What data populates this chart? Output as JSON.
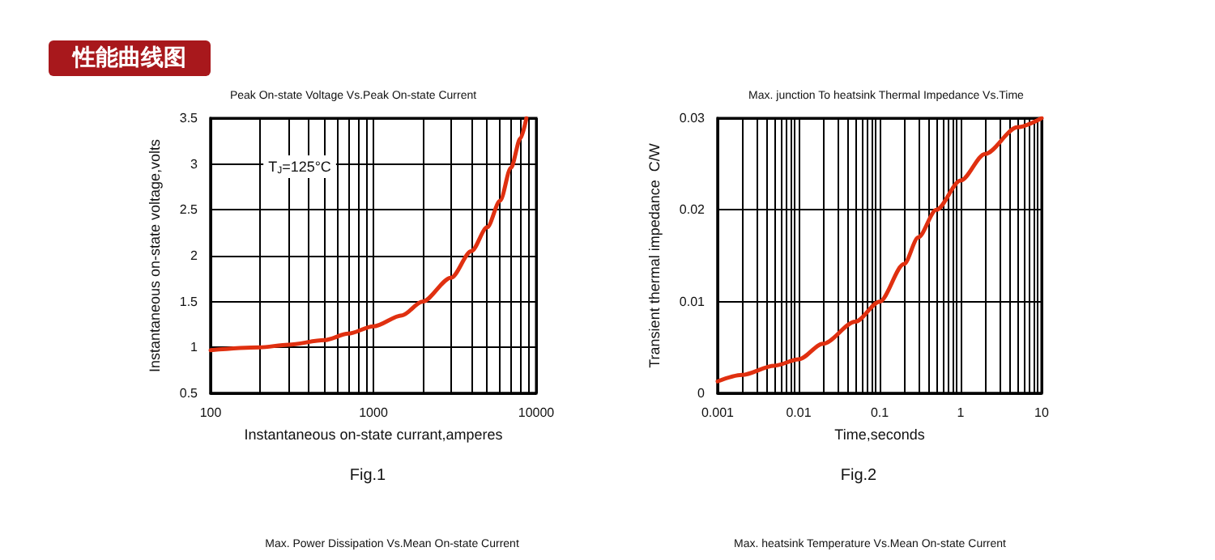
{
  "chart_data": [
    {
      "type": "line",
      "title": "Peak On-state Voltage Vs.Peak On-state Current",
      "xlabel": "Instantaneous on-state currant,amperes",
      "ylabel": "Instantaneous on-state voltage,volts",
      "annotations": [
        "性能曲线图",
        "T$_{J}$=125°C",
        "Fig.1"
      ],
      "log": "x",
      "grid": true,
      "marker": "none",
      "line_style": "solid",
      "x": [
        100,
        200,
        300,
        500,
        700,
        1000,
        1500,
        2000,
        3000,
        4000,
        5000,
        6000,
        7000,
        8000,
        8700
      ],
      "series": [
        {
          "color": "#e03010",
          "values": [
            0.97,
            1.0,
            1.03,
            1.08,
            1.15,
            1.23,
            1.35,
            1.5,
            1.76,
            2.05,
            2.31,
            2.6,
            2.96,
            3.28,
            3.5
          ]
        }
      ],
      "xlim": [
        100,
        10000
      ],
      "ylim": [
        0.5,
        3.5
      ],
      "xticks": [
        100,
        {
          "value": 200,
          "label": null
        },
        {
          "value": 300,
          "label": null
        },
        {
          "value": 400,
          "label": null
        },
        {
          "value": 500,
          "label": null
        },
        {
          "value": 600,
          "label": null
        },
        {
          "value": 700,
          "label": null
        },
        {
          "value": 800,
          "label": null
        },
        {
          "value": 900,
          "label": null
        },
        1000,
        {
          "value": 2000,
          "label": null
        },
        {
          "value": 3000,
          "label": null
        },
        {
          "value": 4000,
          "label": null
        },
        {
          "value": 5000,
          "label": null
        },
        {
          "value": 6000,
          "label": null
        },
        {
          "value": 7000,
          "label": null
        },
        {
          "value": 8000,
          "label": null
        },
        {
          "value": 9000,
          "label": null
        },
        10000
      ],
      "yticks": [
        0.5,
        1,
        1.5,
        2,
        2.5,
        3,
        3.5
      ]
    },
    {
      "type": "line",
      "title": "Max. junction To heatsink Thermal Impedance Vs.Time",
      "xlabel": "Time,seconds",
      "ylabel": "Transient thermal impedance  C/W",
      "annotations": [
        "Fig.2"
      ],
      "log": "x",
      "grid": true,
      "marker": "none",
      "line_style": "solid",
      "x": [
        0.001,
        0.002,
        0.005,
        0.01,
        0.02,
        0.05,
        0.1,
        0.2,
        0.3,
        0.5,
        1,
        2,
        5,
        10
      ],
      "series": [
        {
          "color": "#e03010",
          "values": [
            0.0013,
            0.002,
            0.003,
            0.0037,
            0.0054,
            0.0078,
            0.01,
            0.0141,
            0.017,
            0.02,
            0.0232,
            0.0261,
            0.029,
            0.03
          ]
        }
      ],
      "xlim": [
        0.001,
        10
      ],
      "ylim": [
        0,
        0.03
      ],
      "xticks": [
        0.001,
        {
          "value": 0.002,
          "label": null
        },
        {
          "value": 0.003,
          "label": null
        },
        {
          "value": 0.004,
          "label": null
        },
        {
          "value": 0.005,
          "label": null
        },
        {
          "value": 0.006,
          "label": null
        },
        {
          "value": 0.007,
          "label": null
        },
        {
          "value": 0.008,
          "label": null
        },
        {
          "value": 0.009,
          "label": null
        },
        0.01,
        {
          "value": 0.02,
          "label": null
        },
        {
          "value": 0.03,
          "label": null
        },
        {
          "value": 0.04,
          "label": null
        },
        {
          "value": 0.05,
          "label": null
        },
        {
          "value": 0.06,
          "label": null
        },
        {
          "value": 0.07,
          "label": null
        },
        {
          "value": 0.08,
          "label": null
        },
        {
          "value": 0.09,
          "label": null
        },
        0.1,
        {
          "value": 0.2,
          "label": null
        },
        {
          "value": 0.3,
          "label": null
        },
        {
          "value": 0.4,
          "label": null
        },
        {
          "value": 0.5,
          "label": null
        },
        {
          "value": 0.6,
          "label": null
        },
        {
          "value": 0.7,
          "label": null
        },
        {
          "value": 0.8,
          "label": null
        },
        {
          "value": 0.9,
          "label": null
        },
        1,
        {
          "value": 2,
          "label": null
        },
        {
          "value": 3,
          "label": null
        },
        {
          "value": 4,
          "label": null
        },
        {
          "value": 5,
          "label": null
        },
        {
          "value": 6,
          "label": null
        },
        {
          "value": 7,
          "label": null
        },
        {
          "value": 8,
          "label": null
        },
        {
          "value": 9,
          "label": null
        },
        10
      ],
      "yticks": [
        0,
        0.01,
        0.02,
        0.03
      ]
    },
    {
      "type": "other",
      "title": "Max. Power Dissipation Vs.Mean On-state Current"
    },
    {
      "type": "other",
      "title": "Max. heatsink Temperature Vs.Mean On-state Current"
    }
  ]
}
